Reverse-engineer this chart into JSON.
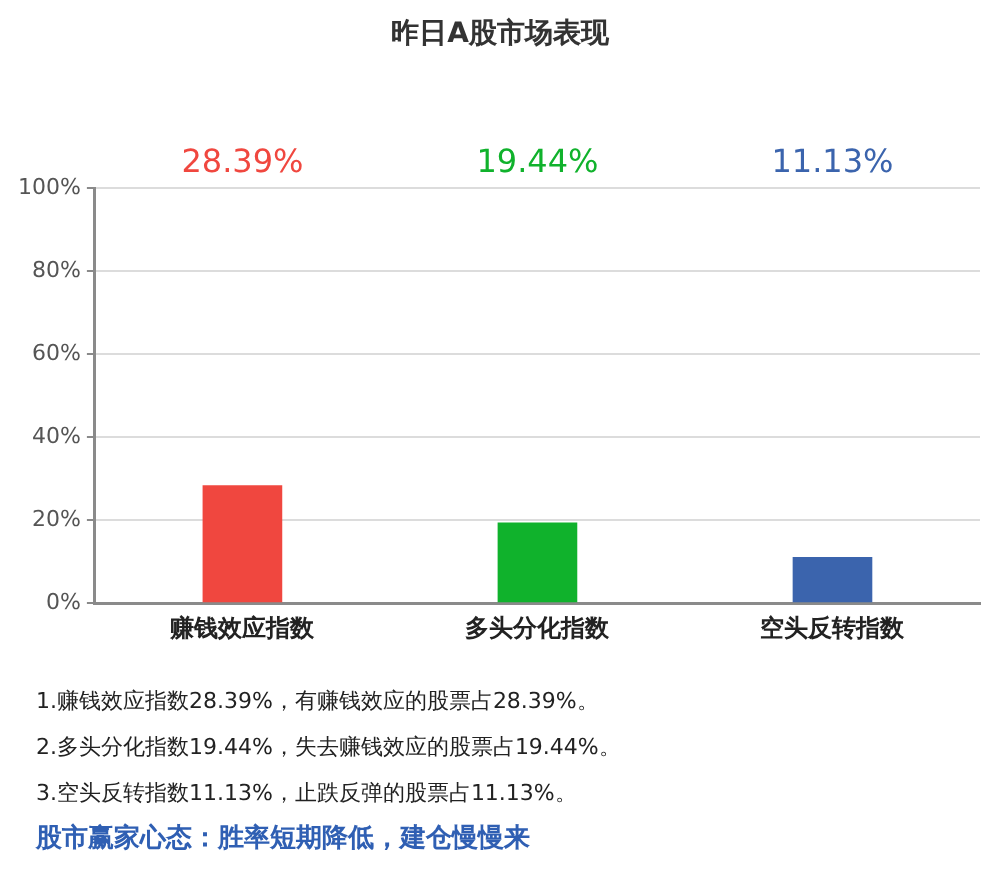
{
  "chart_data": {
    "type": "bar",
    "title": "昨日A股市场表现",
    "categories": [
      "赚钱效应指数",
      "多头分化指数",
      "空头反转指数"
    ],
    "values": [
      28.39,
      19.44,
      11.13
    ],
    "colors": [
      "#f0473f",
      "#10b22c",
      "#3b64ad"
    ],
    "ylim": [
      0,
      100
    ],
    "yticks": [
      {
        "value": 0,
        "label": "0%"
      },
      {
        "value": 20,
        "label": "20%"
      },
      {
        "value": 40,
        "label": "40%"
      },
      {
        "value": 60,
        "label": "60%"
      },
      {
        "value": 80,
        "label": "80%"
      },
      {
        "value": 100,
        "label": "100%"
      }
    ],
    "grid": "y",
    "legend": false,
    "annotations": [
      "28.39%",
      "19.44%",
      "11.13%",
      "1.赚钱效应指数28.39%，有赚钱效应的股票占28.39%。",
      "2.多头分化指数19.44%，失去赚钱效应的股票占19.44%。",
      "3.空头反转指数11.13%，止跌反弹的股票占11.13%。",
      "股市赢家心态：胜率短期降低，建仓慢慢来"
    ]
  }
}
